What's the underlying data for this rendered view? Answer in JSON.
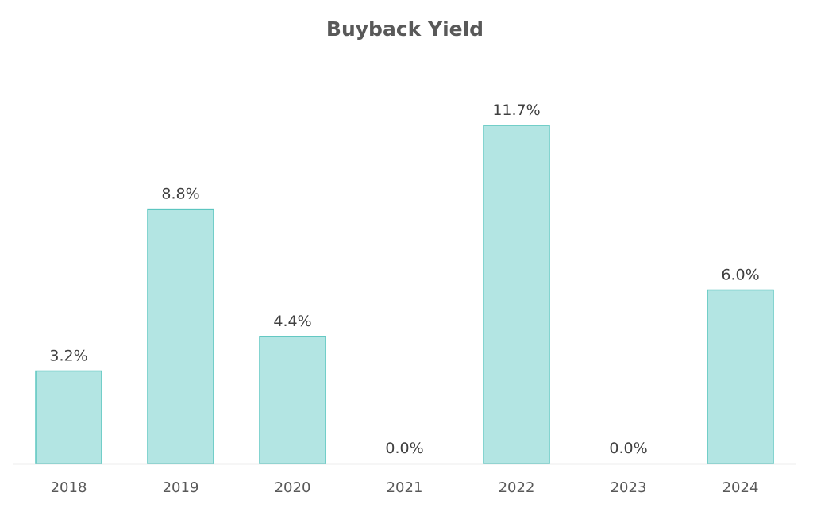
{
  "chart_data": {
    "type": "bar",
    "title": "Buyback Yield",
    "xlabel": "",
    "ylabel": "",
    "categories": [
      "2018",
      "2019",
      "2020",
      "2021",
      "2022",
      "2023",
      "2024"
    ],
    "values": [
      3.2,
      8.8,
      4.4,
      0.0,
      11.7,
      0.0,
      6.0
    ],
    "data_labels": [
      "3.2%",
      "8.8%",
      "4.4%",
      "0.0%",
      "11.7%",
      "0.0%",
      "6.0%"
    ],
    "unit": "%",
    "ylim": [
      0,
      11.7
    ],
    "grid": false,
    "legend": "none",
    "colors": {
      "bar_fill": "#b3e5e3",
      "bar_stroke": "#5cc6c0",
      "axis_line": "#d9d9d9"
    }
  }
}
